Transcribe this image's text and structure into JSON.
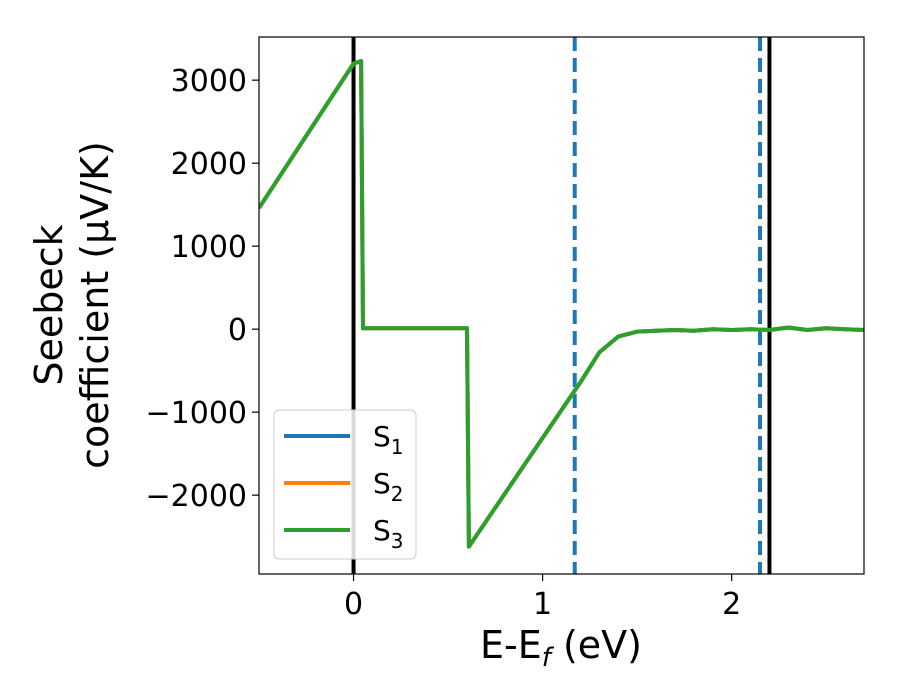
{
  "chart_data": {
    "type": "line",
    "xlabel": "E-E_f (eV)",
    "xlabel_parts": {
      "main": "E-E",
      "sub": "f",
      "tail": " (eV)"
    },
    "ylabel_line1": "Seebeck",
    "ylabel_line2": "coefficient  (μV/K)",
    "xlim": [
      -0.5,
      2.7
    ],
    "ylim": [
      -2950,
      3520
    ],
    "xticks": [
      0,
      1,
      2
    ],
    "xtick_labels": [
      "0",
      "1",
      "2"
    ],
    "yticks": [
      -2000,
      -1000,
      0,
      1000,
      2000,
      3000
    ],
    "ytick_labels": [
      "−2000",
      "−1000",
      "0",
      "1000",
      "2000",
      "3000"
    ],
    "vertical_lines": [
      {
        "x": 0.0,
        "style": "solid",
        "color": "#000000"
      },
      {
        "x": 2.2,
        "style": "solid",
        "color": "#000000"
      },
      {
        "x": 1.17,
        "style": "dashed",
        "color": "#1f77b4"
      },
      {
        "x": 2.15,
        "style": "dashed",
        "color": "#1f77b4"
      }
    ],
    "legend_position": "lower-left",
    "series": [
      {
        "name": "S_1",
        "label_main": "S",
        "label_sub": "1",
        "color": "#1f77b4",
        "x": [
          -0.5,
          0.0,
          0.04,
          0.05,
          0.6,
          0.61,
          1.2,
          1.3,
          1.4,
          1.5,
          1.6,
          1.7,
          1.8,
          1.9,
          2.0,
          2.1,
          2.2,
          2.3,
          2.4,
          2.5,
          2.6,
          2.7
        ],
        "y": [
          1460,
          3200,
          3230,
          10,
          10,
          -2620,
          -640,
          -280,
          -90,
          -30,
          -20,
          -10,
          -20,
          0,
          -10,
          0,
          -10,
          20,
          -10,
          10,
          0,
          -10
        ]
      },
      {
        "name": "S_2",
        "label_main": "S",
        "label_sub": "2",
        "color": "#ff7f0e",
        "x": [
          -0.5,
          0.0,
          0.04,
          0.05,
          0.6,
          0.61,
          1.2,
          1.3,
          1.4,
          1.5,
          1.6,
          1.7,
          1.8,
          1.9,
          2.0,
          2.1,
          2.2,
          2.3,
          2.4,
          2.5,
          2.6,
          2.7
        ],
        "y": [
          1460,
          3200,
          3230,
          10,
          10,
          -2620,
          -640,
          -280,
          -90,
          -30,
          -20,
          -10,
          -20,
          0,
          -10,
          0,
          -10,
          20,
          -10,
          10,
          0,
          -10
        ]
      },
      {
        "name": "S_3",
        "label_main": "S",
        "label_sub": "3",
        "color": "#2ca02c",
        "x": [
          -0.5,
          0.0,
          0.04,
          0.05,
          0.6,
          0.61,
          1.2,
          1.3,
          1.4,
          1.5,
          1.6,
          1.7,
          1.8,
          1.9,
          2.0,
          2.1,
          2.2,
          2.3,
          2.4,
          2.5,
          2.6,
          2.7
        ],
        "y": [
          1460,
          3200,
          3230,
          10,
          10,
          -2620,
          -640,
          -280,
          -90,
          -30,
          -20,
          -10,
          -20,
          0,
          -10,
          0,
          -10,
          20,
          -10,
          10,
          0,
          -10
        ]
      }
    ]
  }
}
